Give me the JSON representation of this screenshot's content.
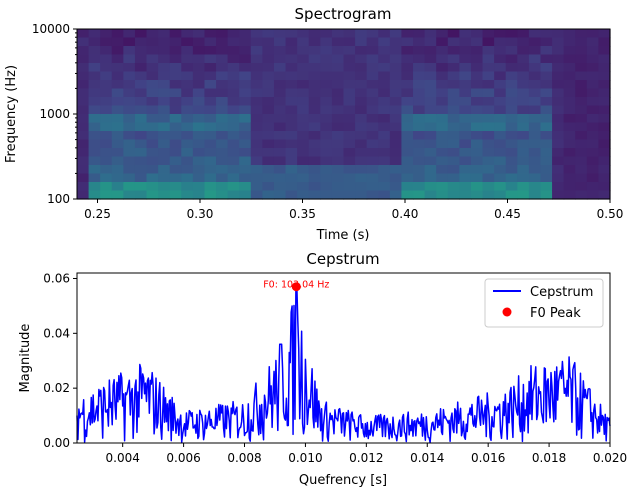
{
  "chart_data": [
    {
      "type": "heatmap",
      "title": "Spectrogram",
      "xlabel": "Time (s)",
      "ylabel": "Frequency (Hz)",
      "xlim": [
        0.24,
        0.5
      ],
      "ylim": [
        100,
        10000
      ],
      "yscale": "log",
      "xticks": [
        0.25,
        0.3,
        0.35,
        0.4,
        0.45,
        0.5
      ],
      "xtick_labels": [
        "0.25",
        "0.30",
        "0.35",
        "0.40",
        "0.45",
        "0.50"
      ],
      "yticks": [
        100,
        1000,
        10000
      ],
      "ytick_labels": [
        "100",
        "1000",
        "10000"
      ],
      "colormap": "viridis",
      "colors": {
        "low": "#440154",
        "mid": "#31688e",
        "high": "#21908d"
      }
    },
    {
      "type": "line",
      "title": "Cepstrum",
      "xlabel": "Quefrency [s]",
      "ylabel": "Magnitude",
      "xlim": [
        0.0025,
        0.02
      ],
      "ylim": [
        0,
        0.062
      ],
      "xticks": [
        0.004,
        0.006,
        0.008,
        0.01,
        0.012,
        0.014,
        0.016,
        0.018,
        0.02
      ],
      "xtick_labels": [
        "0.004",
        "0.006",
        "0.008",
        "0.010",
        "0.012",
        "0.014",
        "0.016",
        "0.018",
        "0.020"
      ],
      "yticks": [
        0,
        0.02,
        0.04,
        0.06
      ],
      "ytick_labels": [
        "0.00",
        "0.02",
        "0.04",
        "0.06"
      ],
      "series": [
        {
          "name": "Cepstrum",
          "color": "#0000ff",
          "key_points": [
            [
              0.0025,
              0.018
            ],
            [
              0.0035,
              0.024
            ],
            [
              0.0048,
              0.03
            ],
            [
              0.006,
              0.012
            ],
            [
              0.008,
              0.016
            ],
            [
              0.0092,
              0.036
            ],
            [
              0.0097,
              0.057
            ],
            [
              0.0105,
              0.016
            ],
            [
              0.012,
              0.01
            ],
            [
              0.014,
              0.012
            ],
            [
              0.0165,
              0.02
            ],
            [
              0.0176,
              0.03
            ],
            [
              0.0187,
              0.032
            ],
            [
              0.02,
              0.009
            ]
          ]
        },
        {
          "name": "F0 Peak",
          "color": "#ff0000",
          "points": [
            [
              0.0097,
              0.057
            ]
          ]
        }
      ],
      "annotation": {
        "text": "F0: 103.04 Hz",
        "x": 0.0097,
        "y": 0.057,
        "color": "#ff0000"
      },
      "legend": {
        "position": "top-right",
        "entries": [
          "Cepstrum",
          "F0 Peak"
        ]
      }
    }
  ]
}
